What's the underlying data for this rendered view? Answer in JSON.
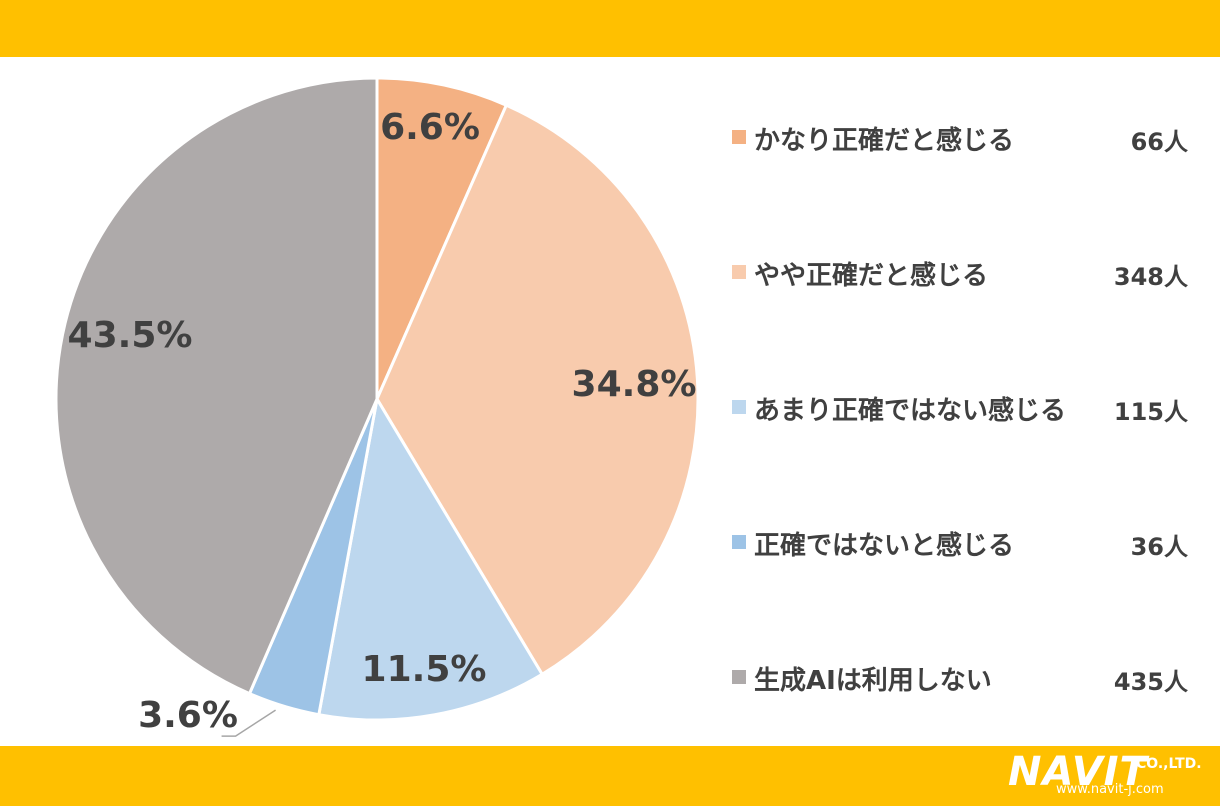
{
  "chart_data": {
    "type": "pie",
    "title": "",
    "categories": [
      "かなり正確だと感じる",
      "やや正確だと感じる",
      "あまり正確ではない感じる",
      "正確ではないと感じる",
      "生成AIは利用しない"
    ],
    "values": [
      6.6,
      34.8,
      11.5,
      3.6,
      43.5
    ],
    "value_labels": [
      "6.6%",
      "34.8%",
      "11.5%",
      "3.6%",
      "43.5%"
    ],
    "counts": [
      "66人",
      "348人",
      "115人",
      "36人",
      "435人"
    ],
    "colors": [
      "#F4B183",
      "#F8CBAD",
      "#BDD7EE",
      "#9DC3E6",
      "#AEAAAA"
    ],
    "legend_position": "right"
  },
  "branding": {
    "logo_text": "NAVIT",
    "company_suffix": "CO.,LTD.",
    "url": "www.navit-j.com",
    "bar_color": "#FFC000"
  }
}
